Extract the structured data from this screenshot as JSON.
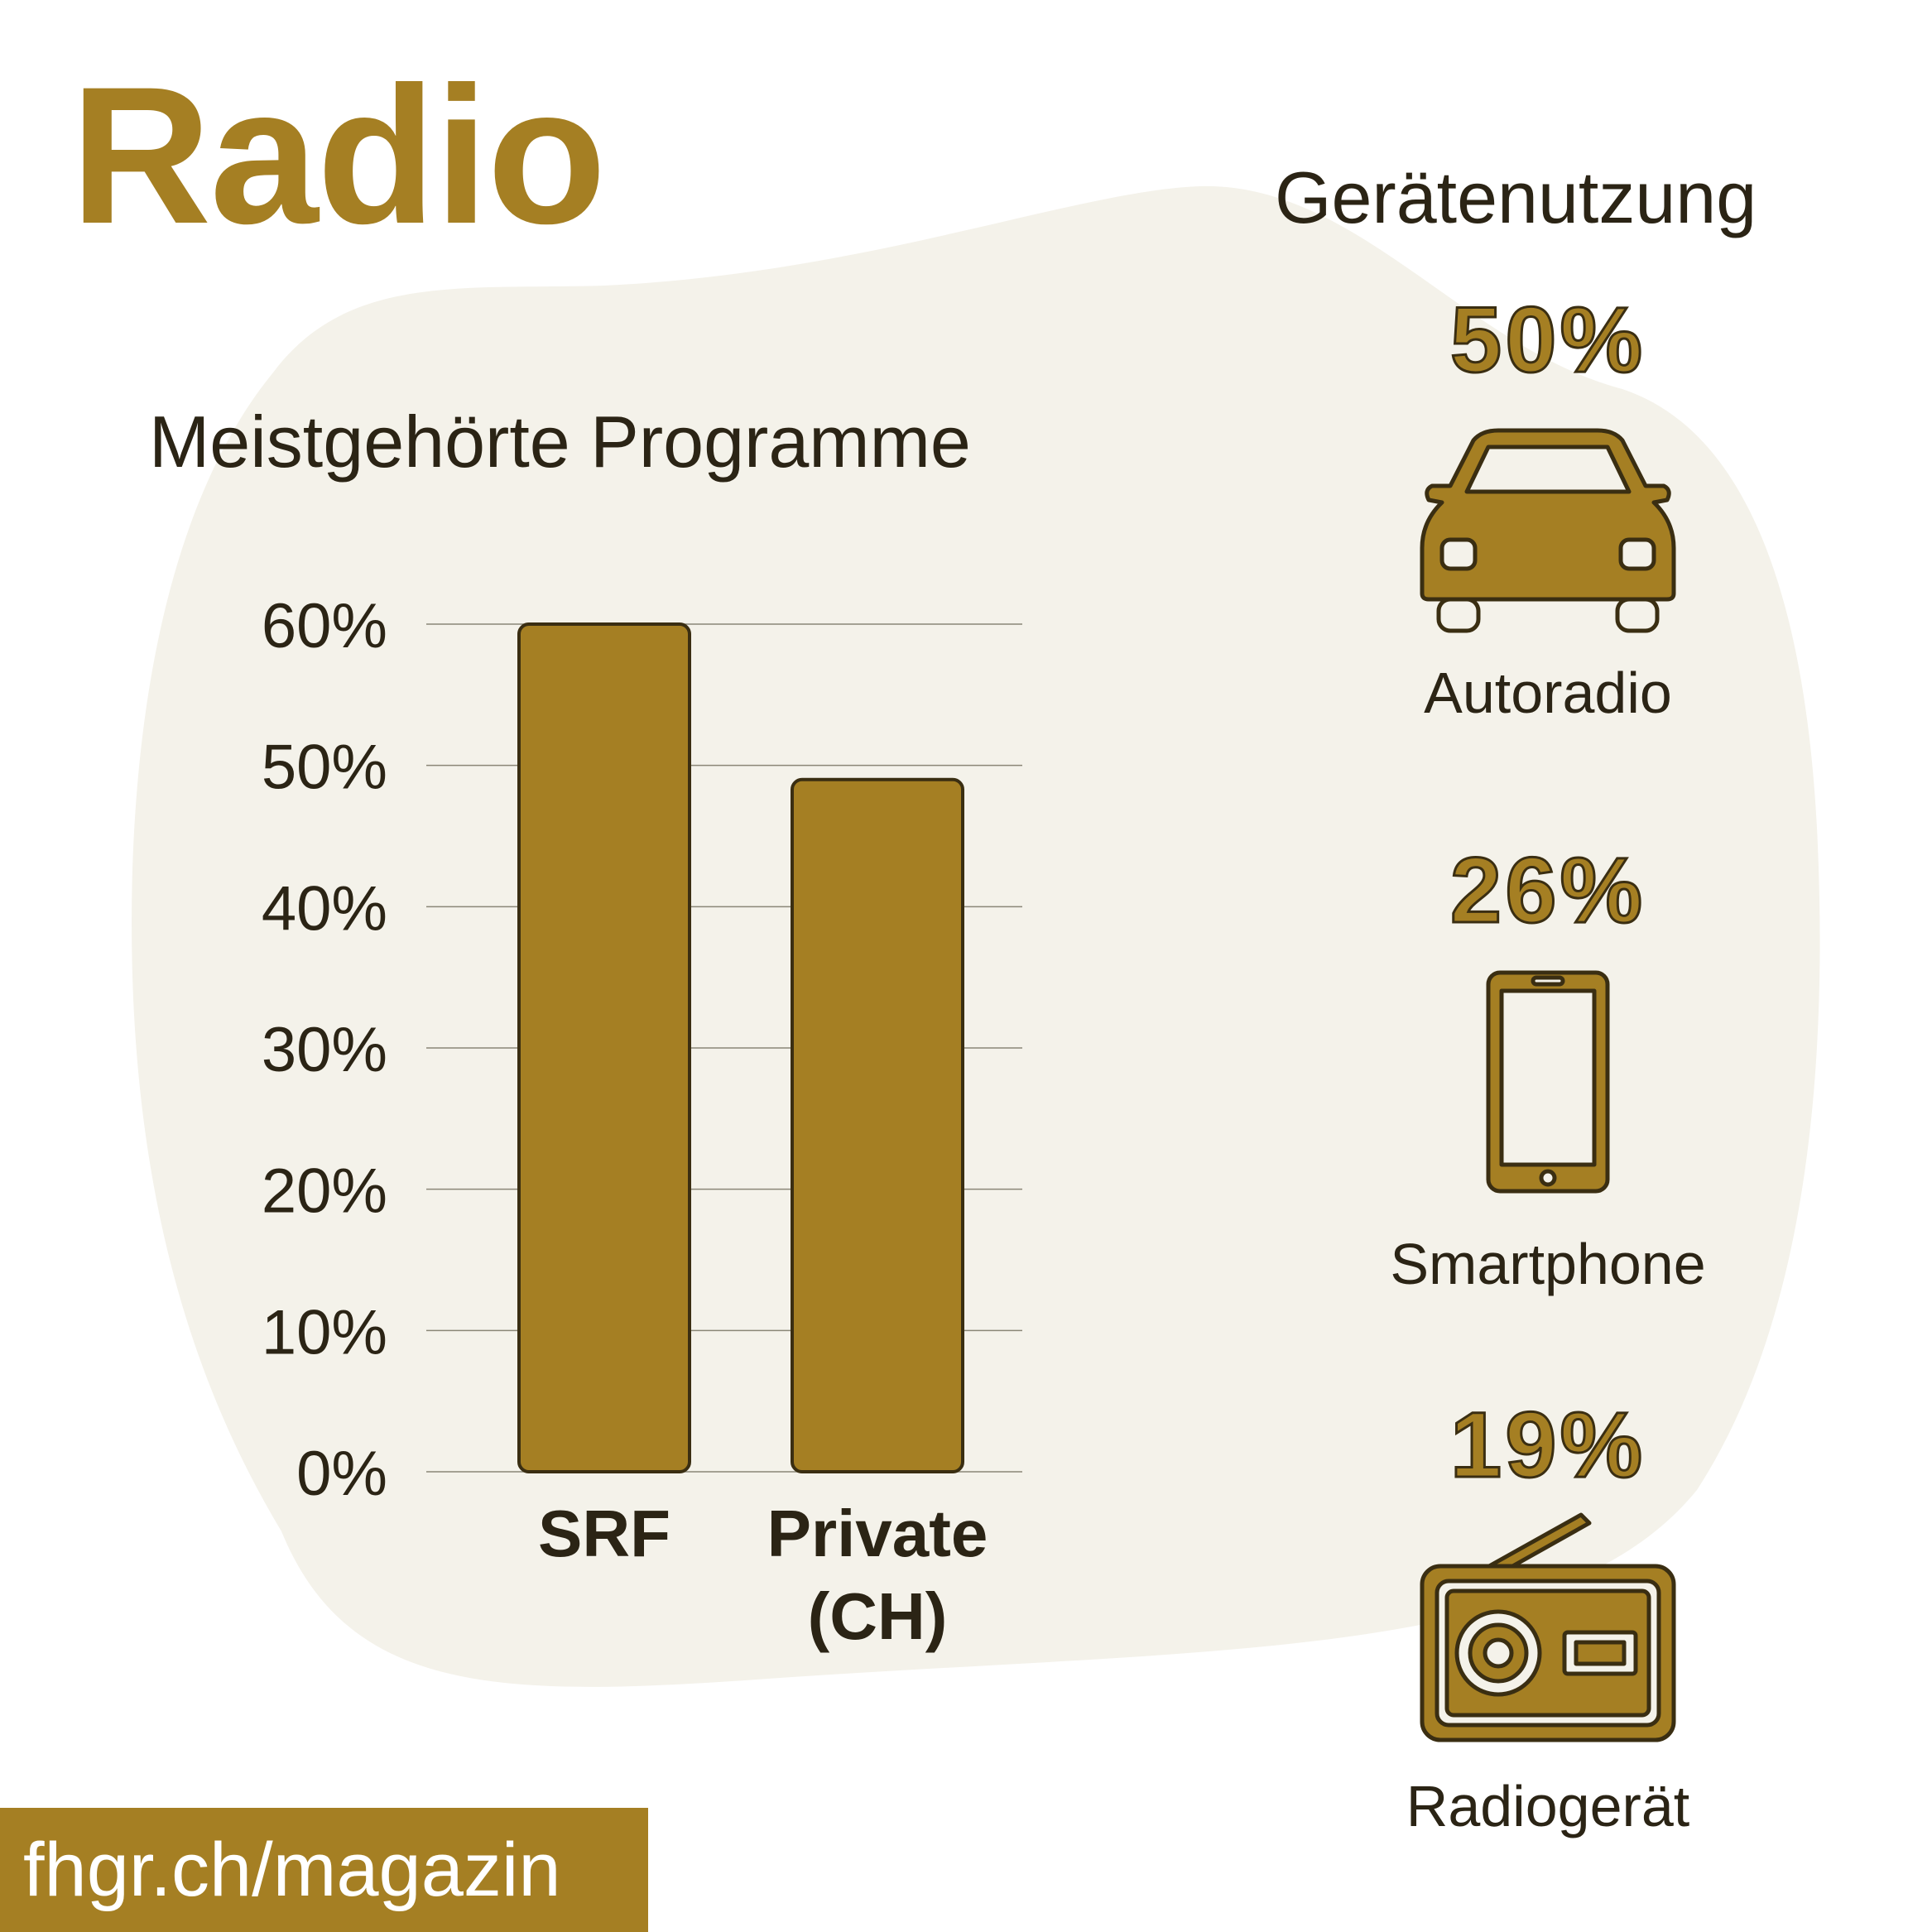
{
  "title": "Radio",
  "colors": {
    "accent": "#a57f23",
    "blob": "#f4f2ea",
    "text": "#2b2415",
    "outline": "#3a2e12"
  },
  "chart_data": {
    "type": "bar",
    "title": "Meistgehörte Programme",
    "categories": [
      "SRF",
      "Private\n(CH)"
    ],
    "values": [
      60,
      49
    ],
    "ylim": [
      0,
      60
    ],
    "yticks": [
      "0%",
      "10%",
      "20%",
      "30%",
      "40%",
      "50%",
      "60%"
    ],
    "grid": true
  },
  "devices": {
    "title": "Gerätenutzung",
    "items": [
      {
        "value": "50%",
        "label": "Autoradio",
        "icon": "car-icon"
      },
      {
        "value": "26%",
        "label": "Smartphone",
        "icon": "smartphone-icon"
      },
      {
        "value": "19%",
        "label": "Radiogerät",
        "icon": "radio-icon"
      }
    ]
  },
  "footer": {
    "link": "fhgr.ch/magazin"
  }
}
